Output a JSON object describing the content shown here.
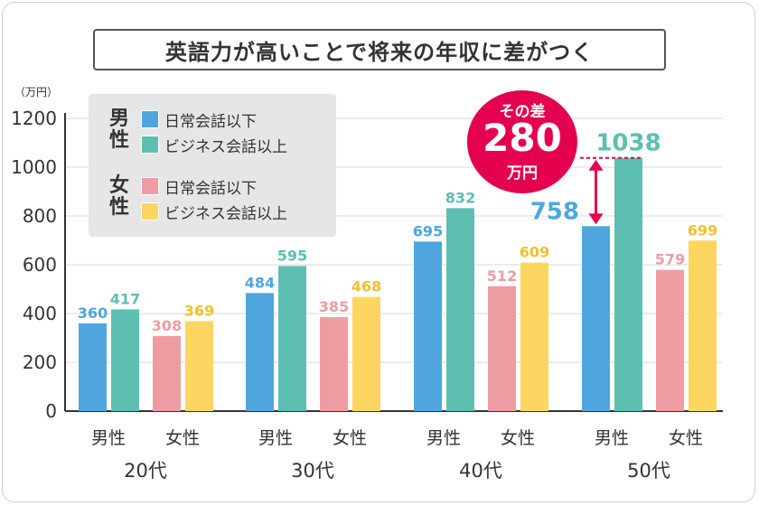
{
  "title": "英語力が高いことで将来の年収に差がつく",
  "colors": {
    "male_low": "#4fa6df",
    "male_high": "#5dbfb1",
    "female_low": "#ee9ca2",
    "female_high": "#fdd662",
    "accent": "#e5004f"
  },
  "legend": {
    "male_label": "男性",
    "female_label": "女性",
    "low_label": "日常会話以下",
    "high_label": "ビジネス会話以上"
  },
  "callout": {
    "line1": "その差",
    "value": "280",
    "unit": "万円"
  },
  "chart_data": {
    "type": "bar",
    "title": "英語力が高いことで将来の年収に差がつく",
    "unit_label": "（万円）",
    "ylim": [
      0,
      1200
    ],
    "yticks": [
      0,
      200,
      400,
      600,
      800,
      1000,
      1200
    ],
    "grid": true,
    "legend_position": "top-left",
    "groups": [
      "20代",
      "30代",
      "40代",
      "50代"
    ],
    "genders": [
      "男性",
      "女性"
    ],
    "series": [
      {
        "name": "男性 日常会話以下",
        "values": [
          360,
          484,
          695,
          758
        ]
      },
      {
        "name": "男性 ビジネス会話以上",
        "values": [
          417,
          595,
          832,
          1038
        ]
      },
      {
        "name": "女性 日常会話以下",
        "values": [
          308,
          385,
          512,
          579
        ]
      },
      {
        "name": "女性 ビジネス会話以上",
        "values": [
          369,
          468,
          609,
          699
        ]
      }
    ]
  }
}
